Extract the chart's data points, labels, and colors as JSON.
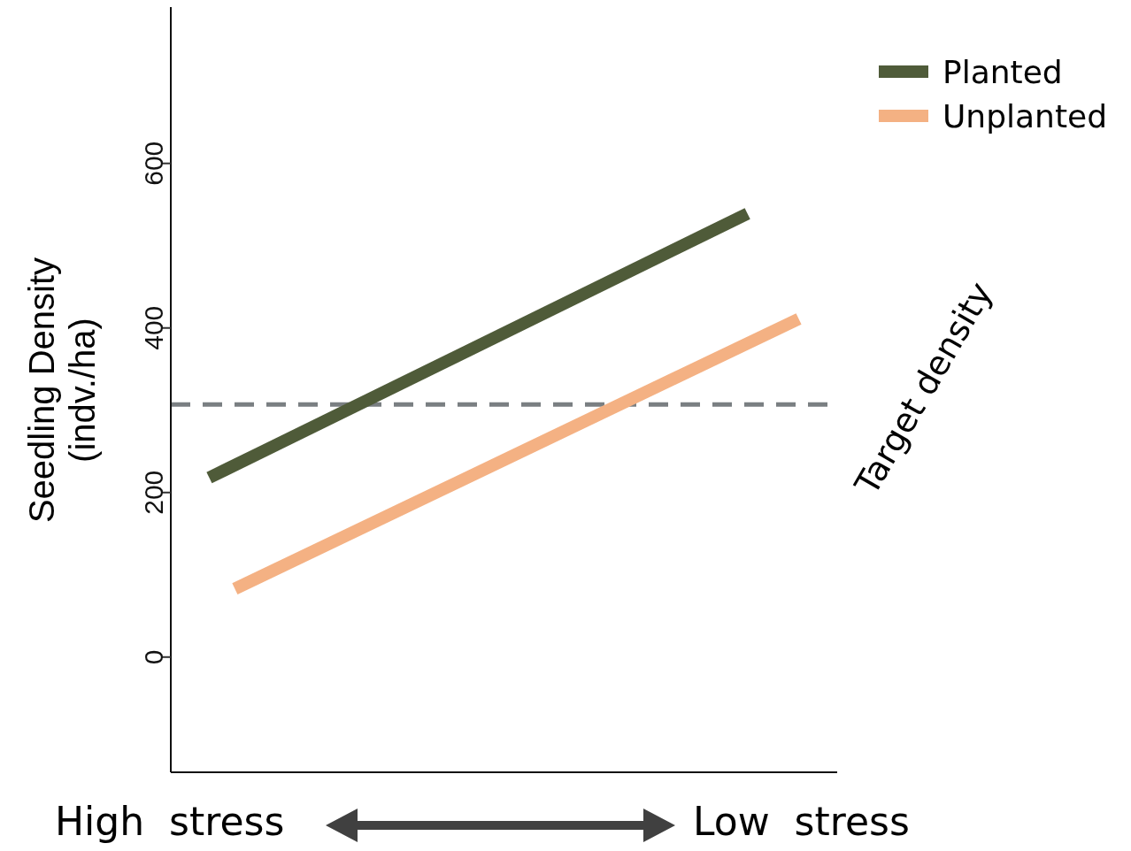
{
  "chart_data": {
    "type": "line",
    "ylabel": "Seedling Density (indv./ha)",
    "categories": [
      null,
      null,
      null,
      null,
      null,
      null,
      null,
      null,
      null,
      null,
      null,
      null,
      null,
      null,
      null,
      null,
      null,
      null,
      null,
      null,
      null,
      null,
      null,
      null,
      null,
      null
    ],
    "ylim": [
      -140,
      790
    ],
    "yticks": [
      0,
      200,
      400,
      600
    ],
    "series": [
      {
        "name": "Planted",
        "color": "#4f5b39",
        "values": [
          null,
          218,
          null,
          null,
          null,
          null,
          null,
          null,
          null,
          null,
          null,
          null,
          null,
          null,
          null,
          null,
          null,
          null,
          null,
          null,
          null,
          null,
          539,
          null,
          null,
          null
        ]
      },
      {
        "name": "Unplanted",
        "color": "#f4b183",
        "values": [
          null,
          null,
          83,
          null,
          null,
          null,
          null,
          null,
          null,
          null,
          null,
          null,
          null,
          null,
          null,
          null,
          null,
          null,
          null,
          null,
          null,
          null,
          null,
          null,
          411,
          null
        ]
      }
    ],
    "ref_lines": [
      {
        "axis": "y",
        "value": 307,
        "label": "Target density",
        "color": "#7a7f82",
        "line_style": "dashed"
      }
    ],
    "annotations": [
      "High  stress",
      "Low  stress"
    ],
    "grid": false,
    "legend": "top right",
    "marker": "none",
    "line_style": "solid"
  }
}
